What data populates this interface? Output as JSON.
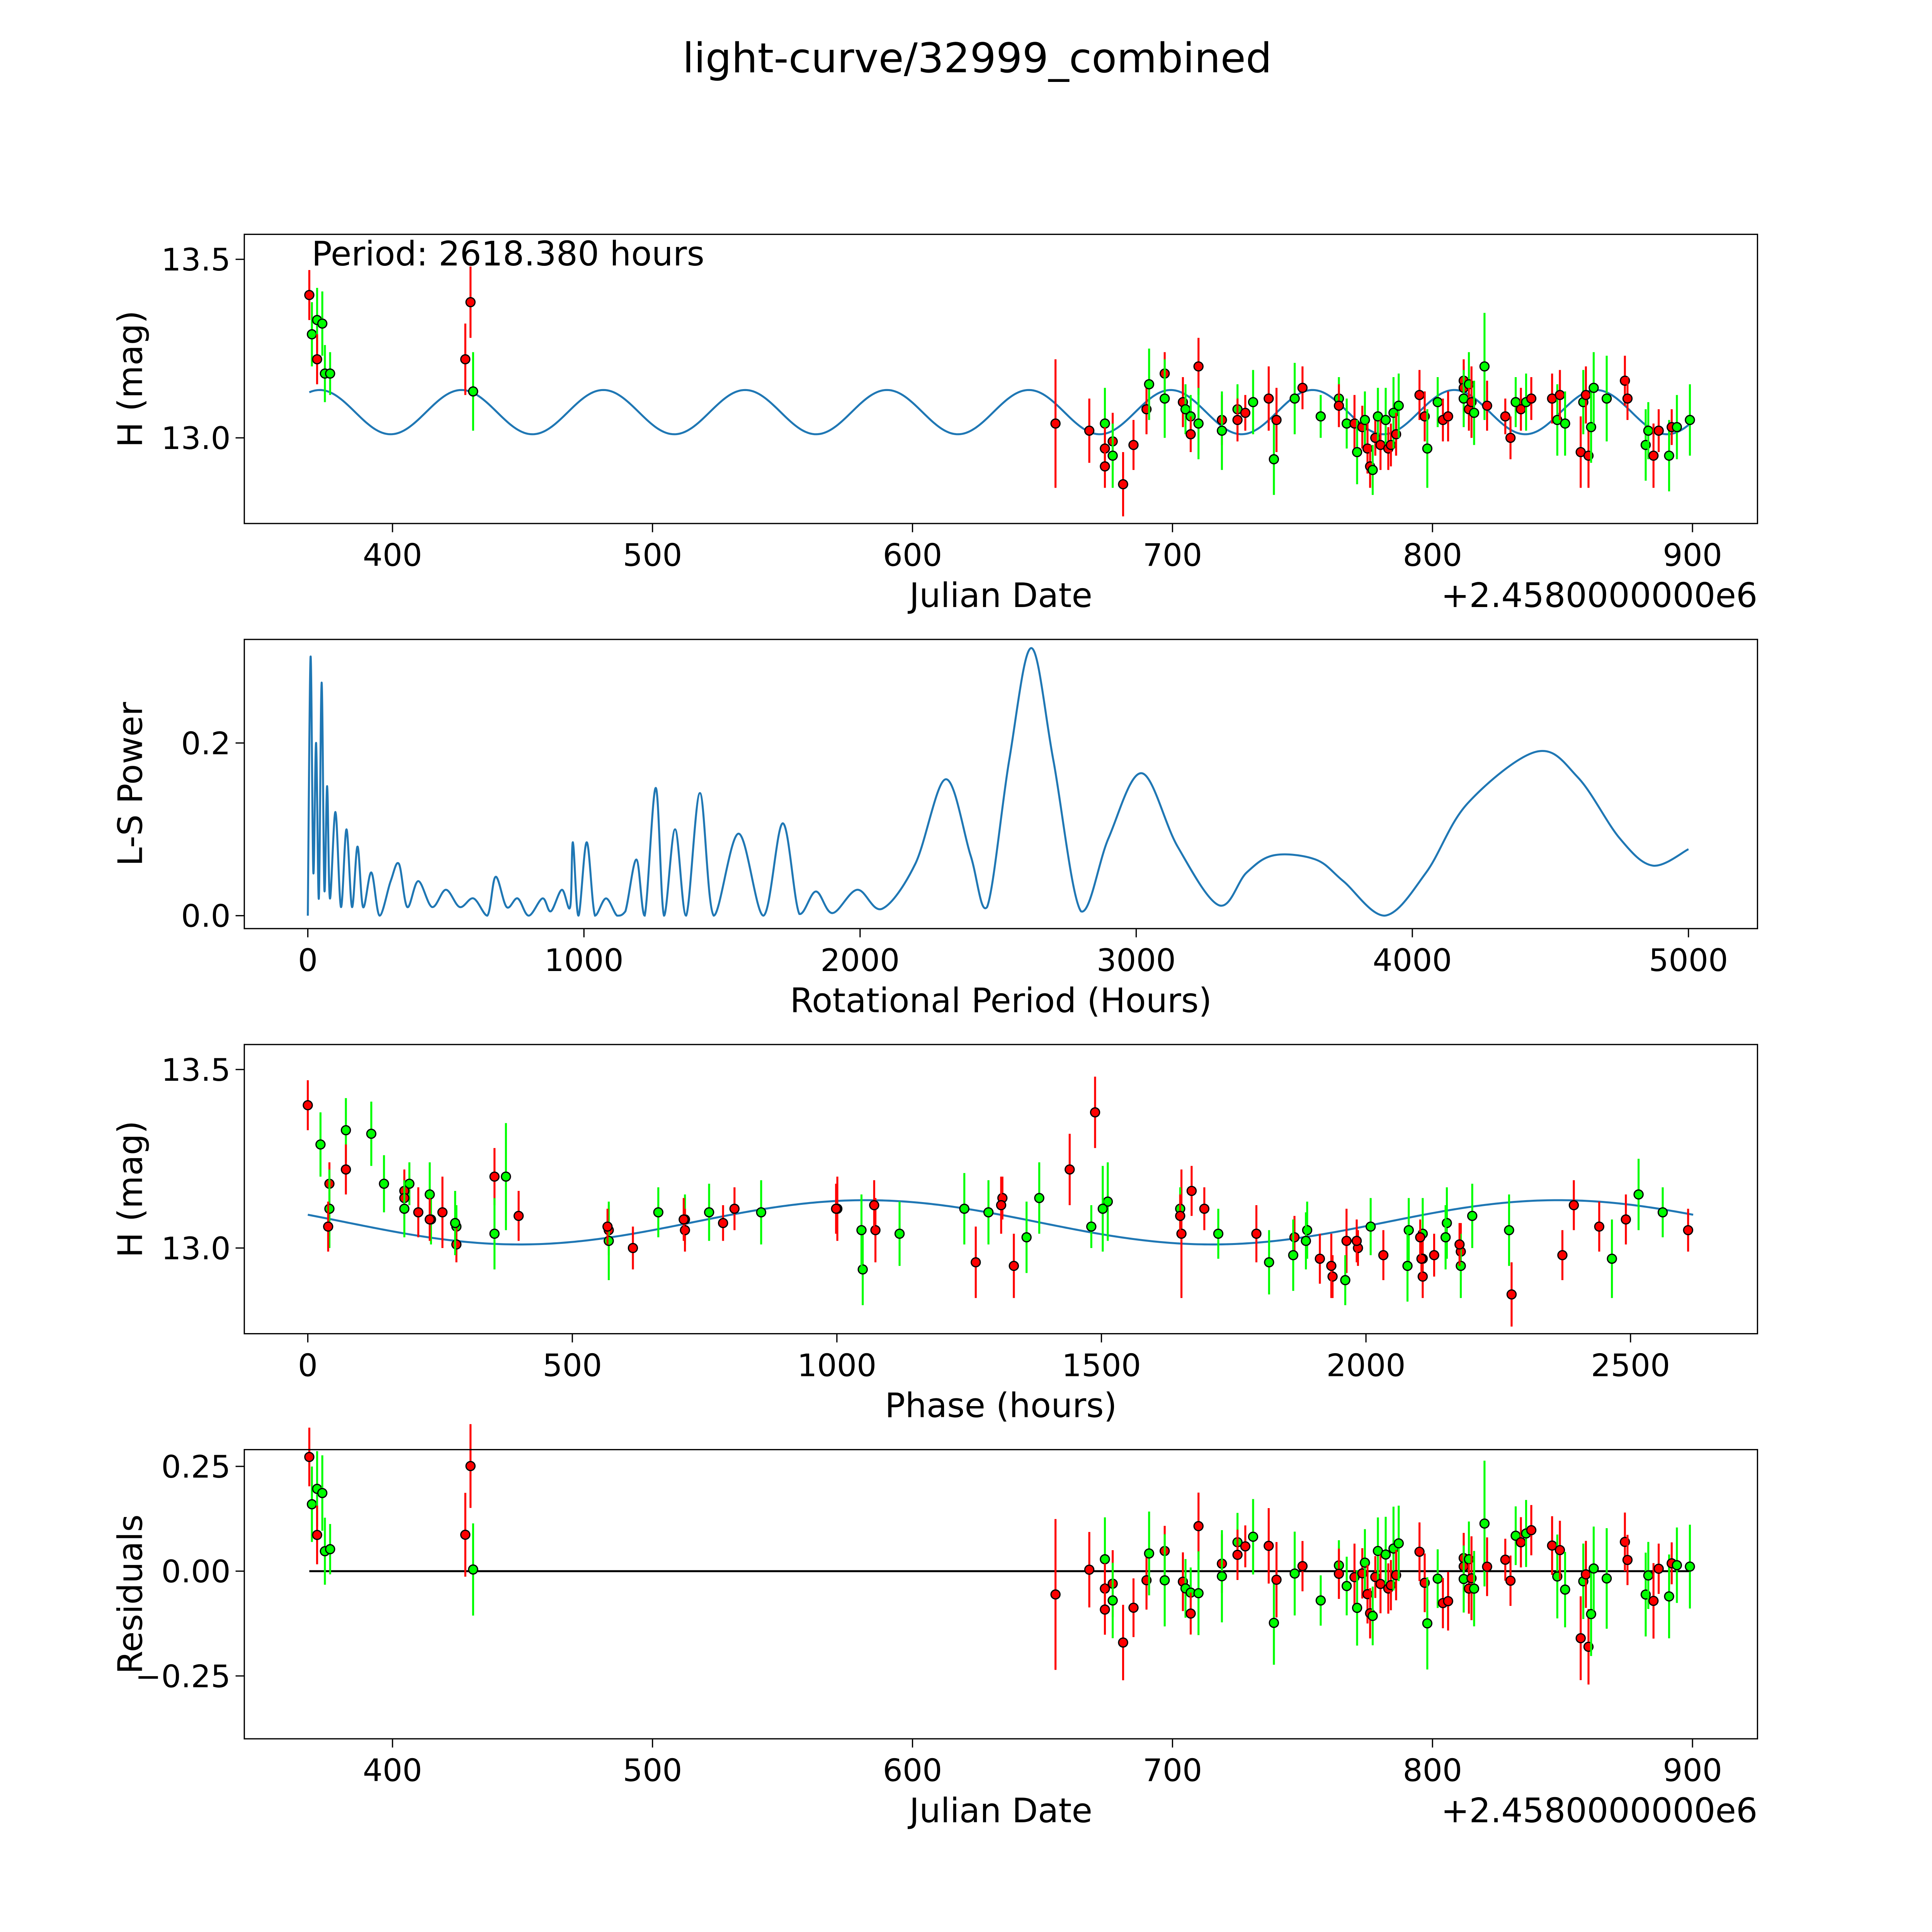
{
  "title": "light-curve/32999_combined",
  "colors": {
    "curve": "#1f77b4",
    "red": "#ff0000",
    "green": "#00ff00",
    "zero_line": "#000000"
  },
  "chart_data": [
    {
      "type": "scatter",
      "name": "light-curve",
      "xlabel": "Julian Date",
      "ylabel": "H (mag)",
      "offset_label": "+2.4580000000e6",
      "annotation": "Period: 2618.380 hours",
      "period_hours": 2618.38,
      "xlim": [
        343,
        925
      ],
      "ylim": [
        12.76,
        13.57
      ],
      "xticks": [
        "400",
        "500",
        "600",
        "700",
        "800",
        "900"
      ],
      "xtick_values": [
        400,
        500,
        600,
        700,
        800,
        900
      ],
      "yticks": [
        "13.0",
        "13.5"
      ],
      "ytick_values": [
        13.0,
        13.5
      ],
      "model": {
        "mean": 13.072,
        "amplitude": 0.062,
        "half_period_days": 54.55,
        "peak_jd": 372
      },
      "points": [
        [
          368,
          13.4,
          0.07,
          "r"
        ],
        [
          369,
          13.29,
          0.09,
          "g"
        ],
        [
          371,
          13.33,
          0.09,
          "g"
        ],
        [
          371,
          13.22,
          0.07,
          "r"
        ],
        [
          373,
          13.32,
          0.09,
          "g"
        ],
        [
          374,
          13.18,
          0.08,
          "g"
        ],
        [
          376,
          13.18,
          0.06,
          "g"
        ],
        [
          428,
          13.22,
          0.1,
          "r"
        ],
        [
          430,
          13.38,
          0.1,
          "r"
        ],
        [
          431,
          13.13,
          0.11,
          "g"
        ],
        [
          655,
          13.04,
          0.18,
          "r"
        ],
        [
          668,
          13.02,
          0.09,
          "r"
        ],
        [
          674,
          13.04,
          0.1,
          "g"
        ],
        [
          674,
          12.97,
          0.06,
          "r"
        ],
        [
          674,
          12.92,
          0.06,
          "r"
        ],
        [
          677,
          12.99,
          0.08,
          "r"
        ],
        [
          677,
          12.95,
          0.09,
          "g"
        ],
        [
          681,
          12.87,
          0.09,
          "r"
        ],
        [
          685,
          12.98,
          0.07,
          "r"
        ],
        [
          690,
          13.08,
          0.07,
          "r"
        ],
        [
          691,
          13.15,
          0.1,
          "g"
        ],
        [
          697,
          13.18,
          0.06,
          "r"
        ],
        [
          697,
          13.11,
          0.11,
          "g"
        ],
        [
          704,
          13.1,
          0.07,
          "r"
        ],
        [
          705,
          13.08,
          0.07,
          "g"
        ],
        [
          707,
          13.06,
          0.06,
          "g"
        ],
        [
          707,
          13.01,
          0.05,
          "r"
        ],
        [
          710,
          13.2,
          0.08,
          "r"
        ],
        [
          710,
          13.04,
          0.1,
          "g"
        ],
        [
          719,
          13.05,
          0.07,
          "r"
        ],
        [
          719,
          13.02,
          0.11,
          "g"
        ],
        [
          725,
          13.08,
          0.07,
          "g"
        ],
        [
          725,
          13.05,
          0.06,
          "r"
        ],
        [
          728,
          13.07,
          0.05,
          "r"
        ],
        [
          731,
          13.1,
          0.09,
          "g"
        ],
        [
          737,
          13.11,
          0.09,
          "r"
        ],
        [
          739,
          12.94,
          0.1,
          "g"
        ],
        [
          740,
          13.05,
          0.09,
          "r"
        ],
        [
          747,
          13.11,
          0.1,
          "g"
        ],
        [
          750,
          13.14,
          0.06,
          "r"
        ],
        [
          757,
          13.06,
          0.06,
          "g"
        ],
        [
          764,
          13.11,
          0.06,
          "g"
        ],
        [
          764,
          13.09,
          0.06,
          "r"
        ],
        [
          767,
          13.04,
          0.07,
          "g"
        ],
        [
          770,
          13.04,
          0.08,
          "r"
        ],
        [
          771,
          12.96,
          0.09,
          "g"
        ],
        [
          773,
          13.03,
          0.06,
          "r"
        ],
        [
          774,
          13.05,
          0.08,
          "g"
        ],
        [
          775,
          12.97,
          0.07,
          "r"
        ],
        [
          776,
          12.92,
          0.06,
          "r"
        ],
        [
          777,
          12.91,
          0.07,
          "g"
        ],
        [
          778,
          13.0,
          0.05,
          "r"
        ],
        [
          779,
          13.06,
          0.08,
          "g"
        ],
        [
          780,
          12.98,
          0.07,
          "r"
        ],
        [
          782,
          13.05,
          0.09,
          "g"
        ],
        [
          783,
          12.97,
          0.06,
          "r"
        ],
        [
          784,
          12.98,
          0.06,
          "r"
        ],
        [
          785,
          13.07,
          0.1,
          "g"
        ],
        [
          786,
          13.01,
          0.06,
          "r"
        ],
        [
          787,
          13.09,
          0.09,
          "g"
        ],
        [
          795,
          13.12,
          0.07,
          "r"
        ],
        [
          797,
          13.06,
          0.07,
          "r"
        ],
        [
          798,
          12.97,
          0.11,
          "g"
        ],
        [
          802,
          13.1,
          0.07,
          "g"
        ],
        [
          804,
          13.05,
          0.06,
          "r"
        ],
        [
          806,
          13.06,
          0.07,
          "r"
        ],
        [
          812,
          13.16,
          0.06,
          "r"
        ],
        [
          812,
          13.14,
          0.06,
          "r"
        ],
        [
          812,
          13.11,
          0.08,
          "g"
        ],
        [
          814,
          13.15,
          0.09,
          "g"
        ],
        [
          814,
          13.08,
          0.06,
          "r"
        ],
        [
          815,
          13.1,
          0.1,
          "r"
        ],
        [
          816,
          13.07,
          0.09,
          "g"
        ],
        [
          820,
          13.2,
          0.15,
          "g"
        ],
        [
          821,
          13.09,
          0.07,
          "r"
        ],
        [
          828,
          13.06,
          0.05,
          "r"
        ],
        [
          830,
          13.0,
          0.06,
          "r"
        ],
        [
          832,
          13.1,
          0.07,
          "g"
        ],
        [
          834,
          13.08,
          0.06,
          "r"
        ],
        [
          836,
          13.1,
          0.08,
          "g"
        ],
        [
          838,
          13.11,
          0.06,
          "r"
        ],
        [
          846,
          13.11,
          0.07,
          "r"
        ],
        [
          848,
          13.05,
          0.1,
          "g"
        ],
        [
          849,
          13.12,
          0.07,
          "r"
        ],
        [
          851,
          13.04,
          0.09,
          "g"
        ],
        [
          857,
          12.96,
          0.1,
          "r"
        ],
        [
          858,
          13.1,
          0.09,
          "g"
        ],
        [
          859,
          13.12,
          0.08,
          "r"
        ],
        [
          860,
          12.95,
          0.09,
          "r"
        ],
        [
          861,
          13.03,
          0.1,
          "g"
        ],
        [
          862,
          13.14,
          0.1,
          "g"
        ],
        [
          867,
          13.11,
          0.12,
          "g"
        ],
        [
          874,
          13.16,
          0.07,
          "r"
        ],
        [
          875,
          13.11,
          0.06,
          "r"
        ],
        [
          882,
          12.98,
          0.1,
          "g"
        ],
        [
          883,
          13.02,
          0.08,
          "g"
        ],
        [
          885,
          12.95,
          0.09,
          "r"
        ],
        [
          887,
          13.02,
          0.06,
          "r"
        ],
        [
          891,
          12.95,
          0.1,
          "g"
        ],
        [
          892,
          13.03,
          0.05,
          "r"
        ],
        [
          894,
          13.03,
          0.09,
          "g"
        ],
        [
          899,
          13.05,
          0.1,
          "g"
        ]
      ]
    },
    {
      "type": "line",
      "name": "periodogram",
      "xlabel": "Rotational Period (Hours)",
      "ylabel": "L-S Power",
      "xlim": [
        -230,
        5250
      ],
      "ylim": [
        -0.015,
        0.32
      ],
      "xticks": [
        "0",
        "1000",
        "2000",
        "3000",
        "4000",
        "5000"
      ],
      "xtick_values": [
        0,
        1000,
        2000,
        3000,
        4000,
        5000
      ],
      "yticks": [
        "0.0",
        "0.2"
      ],
      "ytick_values": [
        0,
        0.2
      ],
      "points": [
        [
          0,
          0
        ],
        [
          10,
          0.3
        ],
        [
          20,
          0.05
        ],
        [
          30,
          0.2
        ],
        [
          40,
          0.02
        ],
        [
          50,
          0.27
        ],
        [
          60,
          0.03
        ],
        [
          70,
          0.15
        ],
        [
          80,
          0.02
        ],
        [
          100,
          0.12
        ],
        [
          120,
          0.01
        ],
        [
          140,
          0.1
        ],
        [
          160,
          0.01
        ],
        [
          180,
          0.08
        ],
        [
          200,
          0.01
        ],
        [
          230,
          0.05
        ],
        [
          260,
          0
        ],
        [
          300,
          0.04
        ],
        [
          330,
          0.06
        ],
        [
          360,
          0.01
        ],
        [
          400,
          0.04
        ],
        [
          450,
          0.01
        ],
        [
          500,
          0.03
        ],
        [
          550,
          0.01
        ],
        [
          600,
          0.02
        ],
        [
          650,
          0
        ],
        [
          680,
          0.045
        ],
        [
          720,
          0.01
        ],
        [
          760,
          0.02
        ],
        [
          800,
          0
        ],
        [
          850,
          0.02
        ],
        [
          880,
          0.005
        ],
        [
          920,
          0.03
        ],
        [
          950,
          0.01
        ],
        [
          960,
          0.085
        ],
        [
          980,
          0
        ],
        [
          1010,
          0.085
        ],
        [
          1040,
          0
        ],
        [
          1080,
          0.02
        ],
        [
          1120,
          0
        ],
        [
          1150,
          0.005
        ],
        [
          1190,
          0.065
        ],
        [
          1220,
          0
        ],
        [
          1260,
          0.148
        ],
        [
          1290,
          0
        ],
        [
          1330,
          0.1
        ],
        [
          1370,
          0
        ],
        [
          1420,
          0.142
        ],
        [
          1470,
          0
        ],
        [
          1560,
          0.095
        ],
        [
          1650,
          0
        ],
        [
          1720,
          0.107
        ],
        [
          1780,
          0.002
        ],
        [
          1840,
          0.028
        ],
        [
          1900,
          0.003
        ],
        [
          1990,
          0.03
        ],
        [
          2080,
          0.008
        ],
        [
          2200,
          0.06
        ],
        [
          2310,
          0.158
        ],
        [
          2400,
          0.07
        ],
        [
          2460,
          0.01
        ],
        [
          2540,
          0.18
        ],
        [
          2620,
          0.31
        ],
        [
          2700,
          0.18
        ],
        [
          2800,
          0.005
        ],
        [
          2900,
          0.09
        ],
        [
          3020,
          0.165
        ],
        [
          3150,
          0.08
        ],
        [
          3300,
          0.012
        ],
        [
          3400,
          0.05
        ],
        [
          3500,
          0.07
        ],
        [
          3650,
          0.065
        ],
        [
          3750,
          0.04
        ],
        [
          3900,
          0
        ],
        [
          4050,
          0.05
        ],
        [
          4200,
          0.13
        ],
        [
          4450,
          0.19
        ],
        [
          4600,
          0.16
        ],
        [
          4750,
          0.09
        ],
        [
          4870,
          0.058
        ],
        [
          5000,
          0.077
        ]
      ]
    },
    {
      "type": "scatter",
      "name": "phase-folded",
      "xlabel": "Phase (hours)",
      "ylabel": "H (mag)",
      "xlim": [
        -120,
        2740
      ],
      "ylim": [
        12.76,
        13.57
      ],
      "xticks": [
        "0",
        "500",
        "1000",
        "1500",
        "2000",
        "2500"
      ],
      "xtick_values": [
        0,
        500,
        1000,
        1500,
        2000,
        2500
      ],
      "yticks": [
        "13.0",
        "13.5"
      ],
      "ytick_values": [
        13.0,
        13.5
      ],
      "epoch_jd": 368,
      "model": {
        "mean": 13.072,
        "amplitude": 0.062,
        "half_period_hours": 1309.19,
        "min_phase_hours": 400
      }
    },
    {
      "type": "scatter",
      "name": "residuals",
      "xlabel": "Julian Date",
      "ylabel": "Residuals",
      "offset_label": "+2.4580000000e6",
      "xlim": [
        343,
        925
      ],
      "ylim": [
        -0.4,
        0.29
      ],
      "xticks": [
        "400",
        "500",
        "600",
        "700",
        "800",
        "900"
      ],
      "xtick_values": [
        400,
        500,
        600,
        700,
        800,
        900
      ],
      "yticks": [
        "0.25",
        "0.00",
        "−0.25"
      ],
      "ytick_values": [
        0.25,
        0,
        -0.25
      ]
    }
  ]
}
